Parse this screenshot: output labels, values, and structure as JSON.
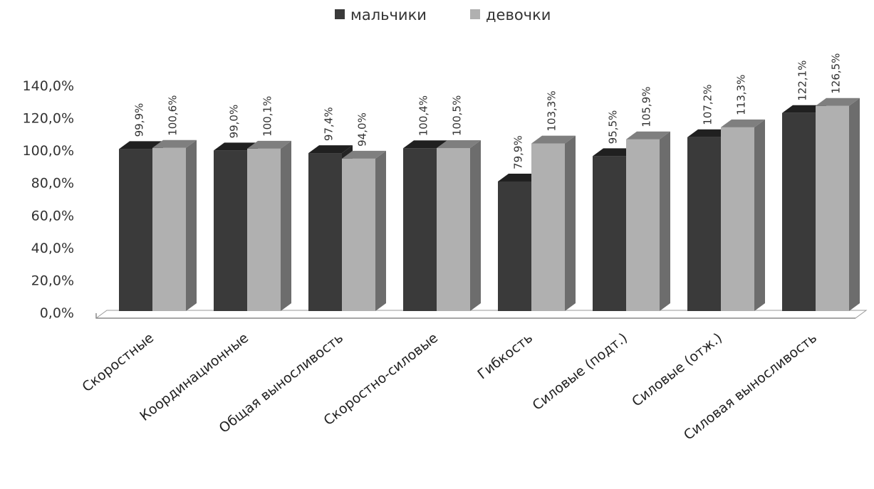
{
  "chart_data": {
    "type": "bar",
    "style": "3d-clustered-column",
    "categories": [
      "Скоростные",
      "Координационные",
      "Общая выносливость",
      "Скоростно-силовые",
      "Гибкость",
      "Силовые (подт.)",
      "Силовые (отж.)",
      "Силовая выносливость"
    ],
    "series": [
      {
        "name": "мальчики",
        "color": "#3a3a3a",
        "values": [
          99.9,
          99.0,
          97.4,
          100.4,
          79.9,
          95.5,
          107.2,
          122.1
        ],
        "labels": [
          "99,9%",
          "99,0%",
          "97,4%",
          "100,4%",
          "79,9%",
          "95,5%",
          "107,2%",
          "122,1%"
        ]
      },
      {
        "name": "девочки",
        "color": "#b0b0b0",
        "values": [
          100.6,
          100.1,
          94.0,
          100.5,
          103.3,
          105.9,
          113.3,
          126.5
        ],
        "labels": [
          "100,6%",
          "100,1%",
          "94,0%",
          "100,5%",
          "103,3%",
          "105,9%",
          "113,3%",
          "126,5%"
        ]
      }
    ],
    "ylim": [
      0,
      140
    ],
    "yticks": [
      0,
      20,
      40,
      60,
      80,
      100,
      120,
      140
    ],
    "ytick_labels": [
      "0,0%",
      "20,0%",
      "40,0%",
      "60,0%",
      "80,0%",
      "100,0%",
      "120,0%",
      "140,0%"
    ],
    "title": "",
    "xlabel": "",
    "ylabel": "",
    "grid": false,
    "legend_position": "top"
  }
}
